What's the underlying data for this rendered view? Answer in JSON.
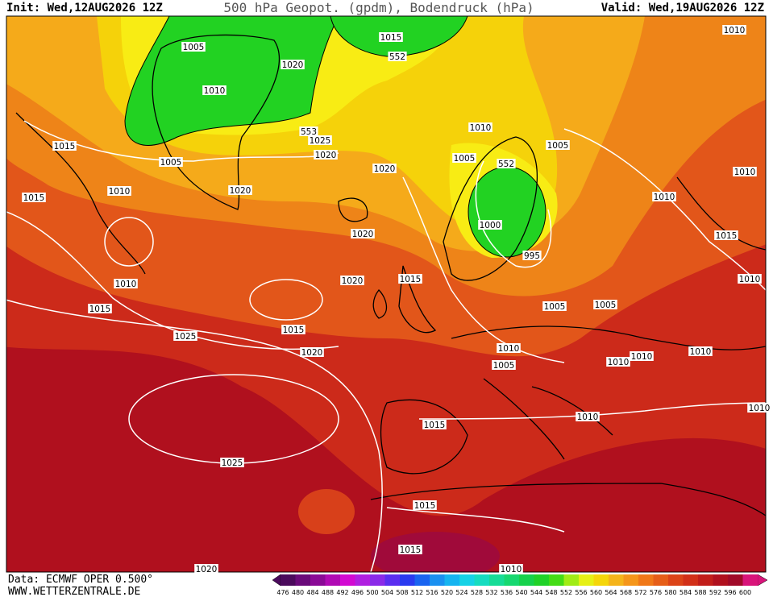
{
  "header": {
    "init": "Init: Wed,12AUG2026 12Z",
    "title": "500 hPa Geopot. (gpdm), Bodendruck (hPa)",
    "valid": "Valid: Wed,19AUG2026 12Z"
  },
  "isobar_labels": [
    "1015",
    "1005",
    "552",
    "1020",
    "1010",
    "553",
    "1025",
    "1020",
    "1015",
    "1005",
    "1010",
    "1010",
    "1005",
    "1005",
    "552",
    "1020",
    "1010",
    "1015",
    "1010",
    "1020",
    "1010",
    "1000",
    "1020",
    "1015",
    "995",
    "1010",
    "1015",
    "1020",
    "1010",
    "1015",
    "1005",
    "1005",
    "1015",
    "1025",
    "1020",
    "1010",
    "1010",
    "1010",
    "1010",
    "1005",
    "1015",
    "1010",
    "1010",
    "1025",
    "1015",
    "1015",
    "1020",
    "1010"
  ],
  "colorbar": {
    "labels": [
      "476",
      "480",
      "484",
      "488",
      "492",
      "496",
      "500",
      "504",
      "508",
      "512",
      "516",
      "520",
      "524",
      "528",
      "532",
      "536",
      "540",
      "544",
      "548",
      "552",
      "556",
      "560",
      "564",
      "568",
      "572",
      "576",
      "580",
      "584",
      "588",
      "592",
      "596",
      "600"
    ],
    "colors": [
      "#4b0a5c",
      "#6a0a7a",
      "#8a0a96",
      "#b00ab4",
      "#d20ad2",
      "#b020e0",
      "#8a2ae8",
      "#5a2ef0",
      "#2a3af0",
      "#1a64f0",
      "#1a90f0",
      "#16b4f0",
      "#16d2e6",
      "#16dcc0",
      "#16dc96",
      "#16d870",
      "#16d24c",
      "#20d228",
      "#44dc16",
      "#a0ec16",
      "#e6f016",
      "#f5d60a",
      "#f5b41a",
      "#f5961a",
      "#f07818",
      "#e65e18",
      "#dc4418",
      "#d23018",
      "#c21e1a",
      "#b0101e",
      "#a00a28",
      "#d8147a"
    ]
  },
  "footer": {
    "source": "Data: ECMWF OPER 0.500°",
    "site": "WWW.WETTERZENTRALE.DE"
  }
}
